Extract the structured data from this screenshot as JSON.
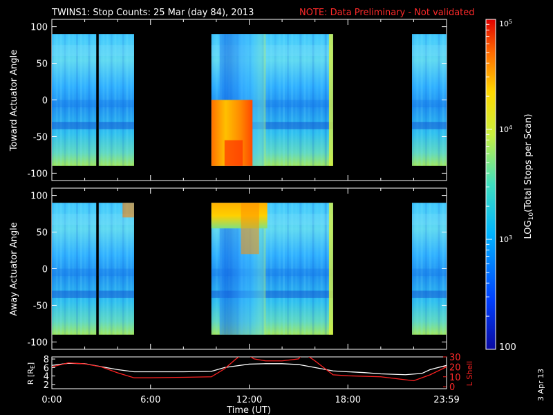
{
  "header": {
    "title": "TWINS1: Stop Counts: 25 Mar (day  84), 2013",
    "note": "NOTE: Data Preliminary - Not validated"
  },
  "side_date": "3 Apr 13",
  "colors": {
    "note": "#ff2a2a",
    "r_line": "#ffffff",
    "lshell_line": "#ff2222"
  },
  "chart_data": [
    {
      "type": "heatmap",
      "ylabel": "Toward Actuator Angle",
      "ylim": [
        -110,
        110
      ],
      "yticks": [
        "100",
        "50",
        "0",
        "-50",
        "-100"
      ],
      "xlim_hours": [
        0,
        24
      ],
      "data_intervals_hours": [
        [
          0,
          2.7
        ],
        [
          2.85,
          5.0
        ],
        [
          9.7,
          17.1
        ],
        [
          21.9,
          24.0
        ]
      ],
      "angle_range": [
        -90,
        90
      ]
    },
    {
      "type": "heatmap",
      "ylabel": "Away Actuator Angle",
      "ylim": [
        -110,
        110
      ],
      "yticks": [
        "100",
        "50",
        "0",
        "-50",
        "-100"
      ],
      "xlim_hours": [
        0,
        24
      ],
      "data_intervals_hours": [
        [
          0,
          2.7
        ],
        [
          2.85,
          5.0
        ],
        [
          9.7,
          17.1
        ],
        [
          21.9,
          24.0
        ]
      ],
      "angle_range": [
        -90,
        90
      ]
    },
    {
      "type": "line",
      "xlabel": "Time (UT)",
      "xticks": [
        "0:00",
        "6:00",
        "12:00",
        "18:00",
        "23:59"
      ],
      "ylabel_left": "R [R",
      "ylabel_left_sub": "E",
      "ylabel_left_end": "]",
      "ylabel_right": "L Shell",
      "yticks_left": [
        "8",
        "6",
        "4",
        "2"
      ],
      "yticks_right": [
        "30",
        "20",
        "10",
        "0"
      ],
      "series": [
        {
          "name": "R",
          "x": [
            0,
            1,
            2,
            3,
            4,
            5,
            6,
            8,
            9.7,
            10.5,
            12,
            13,
            14,
            15,
            16,
            17.1,
            18,
            19,
            20,
            21.5,
            22.5,
            23,
            24
          ],
          "y": [
            6.5,
            7.0,
            6.9,
            6.2,
            5.5,
            5.0,
            5.0,
            5.0,
            5.1,
            6.0,
            6.8,
            6.9,
            6.9,
            6.7,
            6.0,
            5.2,
            5.0,
            4.8,
            4.5,
            4.3,
            4.6,
            5.5,
            6.5
          ]
        },
        {
          "name": "L Shell",
          "x": [
            0,
            1,
            2,
            3,
            4,
            5,
            6,
            8,
            9.7,
            10.5,
            11.2,
            11.7,
            12.3,
            13,
            14,
            15,
            15.3,
            16,
            17.1,
            18,
            20,
            22,
            23,
            24
          ],
          "y": [
            20,
            24,
            23,
            20,
            14,
            9,
            9,
            9.5,
            10,
            18,
            28,
            34,
            28,
            26,
            26,
            28,
            34,
            26,
            12,
            11,
            10,
            6,
            12,
            20
          ]
        }
      ]
    }
  ],
  "colorbar": {
    "label": "LOG",
    "label_sub": "10",
    "label_end": "(Total Stops per Scan)",
    "ticks": [
      "10",
      "10",
      "10"
    ],
    "tick_exponents": [
      "5",
      "4",
      "3"
    ],
    "bottom_tick": "100"
  }
}
